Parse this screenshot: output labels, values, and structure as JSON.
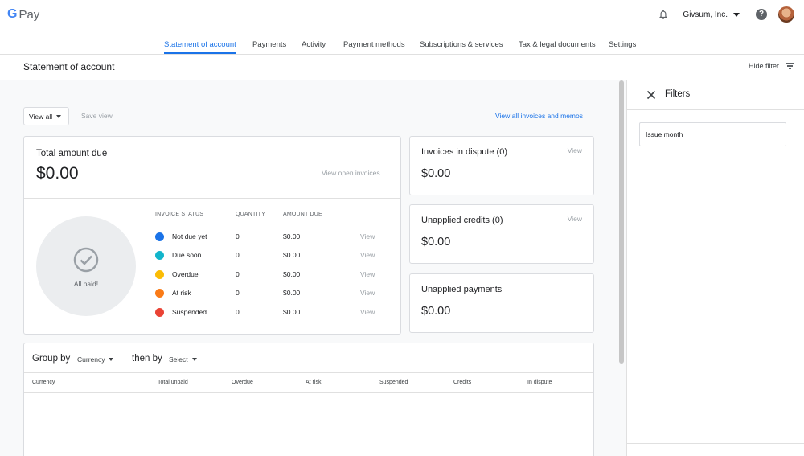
{
  "header": {
    "logo_g": "G",
    "logo_pay": "Pay",
    "account_name": "Givsum, Inc.",
    "help_glyph": "?"
  },
  "tabs": [
    {
      "label": "Statement of account",
      "active": true
    },
    {
      "label": "Payments"
    },
    {
      "label": "Activity"
    },
    {
      "label": "Payment methods"
    },
    {
      "label": "Subscriptions & services"
    },
    {
      "label": "Tax & legal documents"
    },
    {
      "label": "Settings"
    }
  ],
  "page": {
    "title": "Statement of account",
    "hide_filter": "Hide filter"
  },
  "toolbar": {
    "view_all": "View all",
    "save_view": "Save view",
    "view_invoices_link": "View all invoices and memos"
  },
  "total": {
    "label": "Total amount due",
    "amount": "$0.00",
    "view_open": "View open invoices",
    "all_paid": "All paid!",
    "headers": {
      "status": "INVOICE STATUS",
      "quantity": "QUANTITY",
      "amount": "AMOUNT DUE"
    },
    "rows": [
      {
        "name": "Not due yet",
        "qty": "0",
        "amount": "$0.00",
        "view": "View",
        "color": "#1a73e8"
      },
      {
        "name": "Due soon",
        "qty": "0",
        "amount": "$0.00",
        "view": "View",
        "color": "#12b5cb"
      },
      {
        "name": "Overdue",
        "qty": "0",
        "amount": "$0.00",
        "view": "View",
        "color": "#fbbc04"
      },
      {
        "name": "At risk",
        "qty": "0",
        "amount": "$0.00",
        "view": "View",
        "color": "#fa7b17"
      },
      {
        "name": "Suspended",
        "qty": "0",
        "amount": "$0.00",
        "view": "View",
        "color": "#ea4335"
      }
    ]
  },
  "cards": {
    "dispute": {
      "label": "Invoices in dispute (0)",
      "view": "View",
      "amount": "$0.00"
    },
    "credits": {
      "label": "Unapplied credits (0)",
      "view": "View",
      "amount": "$0.00"
    },
    "payments": {
      "label": "Unapplied payments",
      "amount": "$0.00"
    }
  },
  "group": {
    "group_by": "Group by",
    "group_value": "Currency",
    "then_by": "then by",
    "then_value": "Select",
    "columns": [
      "Currency",
      "Total unpaid",
      "Overdue",
      "At risk",
      "Suspended",
      "Credits",
      "In dispute"
    ]
  },
  "filters": {
    "title": "Filters",
    "issue_month": "Issue month"
  },
  "colors": {
    "accent": "#1a73e8",
    "muted": "#9aa0a6"
  }
}
